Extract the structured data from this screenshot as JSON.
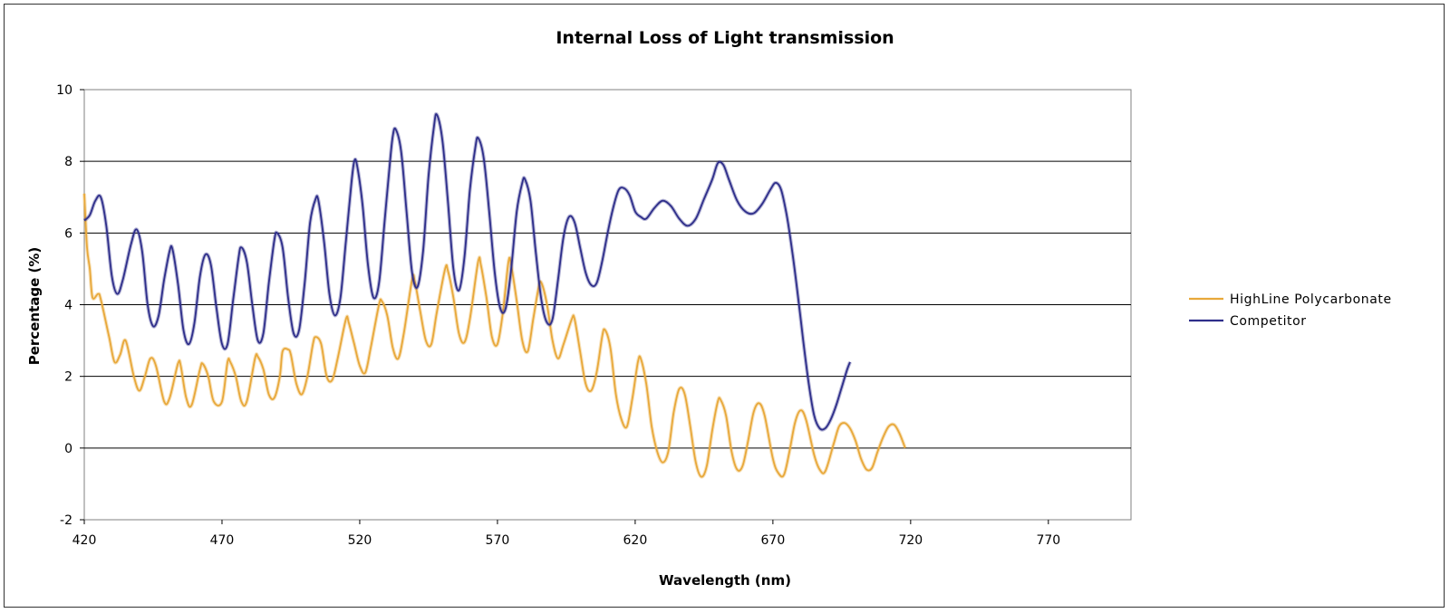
{
  "chart_data": {
    "type": "line",
    "title": "Internal Loss of Light transmission",
    "xlabel": "Wavelength (nm)",
    "ylabel": "Percentage (%)",
    "xlim": [
      420,
      800
    ],
    "ylim": [
      -2,
      10
    ],
    "x_ticks": [
      420,
      470,
      520,
      570,
      620,
      670,
      720,
      770
    ],
    "y_ticks": [
      -2,
      0,
      2,
      4,
      6,
      8,
      10
    ],
    "x_tick_labels": [
      "420",
      "470",
      "520",
      "570",
      "620",
      "670",
      "720",
      "770"
    ],
    "y_tick_labels": [
      "-2",
      "0",
      "2",
      "4",
      "6",
      "8",
      "10"
    ],
    "grid": "horizontal",
    "legend": "right",
    "series": [
      {
        "name": "HighLine Polycarbonate",
        "color": "#E8A83A",
        "points": [
          [
            420,
            7.1
          ],
          [
            421,
            5.6
          ],
          [
            422,
            5.0
          ],
          [
            423,
            4.2
          ],
          [
            425,
            4.3
          ],
          [
            426,
            4.15
          ],
          [
            429,
            3.1
          ],
          [
            431,
            2.4
          ],
          [
            433,
            2.6
          ],
          [
            435,
            3.0
          ],
          [
            438,
            2.0
          ],
          [
            440,
            1.6
          ],
          [
            442,
            2.0
          ],
          [
            444,
            2.5
          ],
          [
            446,
            2.3
          ],
          [
            449,
            1.3
          ],
          [
            451,
            1.4
          ],
          [
            454,
            2.35
          ],
          [
            455,
            2.3
          ],
          [
            457,
            1.4
          ],
          [
            459,
            1.2
          ],
          [
            462,
            2.2
          ],
          [
            463,
            2.35
          ],
          [
            465,
            2.0
          ],
          [
            467,
            1.3
          ],
          [
            470,
            1.3
          ],
          [
            472,
            2.4
          ],
          [
            473,
            2.4
          ],
          [
            475,
            2.0
          ],
          [
            477,
            1.3
          ],
          [
            479,
            1.3
          ],
          [
            482,
            2.5
          ],
          [
            483,
            2.55
          ],
          [
            485,
            2.2
          ],
          [
            487,
            1.5
          ],
          [
            489,
            1.4
          ],
          [
            491,
            2.0
          ],
          [
            492,
            2.7
          ],
          [
            494,
            2.75
          ],
          [
            495,
            2.6
          ],
          [
            497,
            1.8
          ],
          [
            499,
            1.5
          ],
          [
            501,
            2.0
          ],
          [
            503,
            2.9
          ],
          [
            504,
            3.1
          ],
          [
            506,
            2.9
          ],
          [
            508,
            2.0
          ],
          [
            510,
            1.9
          ],
          [
            512,
            2.5
          ],
          [
            515,
            3.6
          ],
          [
            516,
            3.5
          ],
          [
            518,
            2.9
          ],
          [
            520,
            2.3
          ],
          [
            522,
            2.1
          ],
          [
            524,
            2.8
          ],
          [
            527,
            4.0
          ],
          [
            528,
            4.1
          ],
          [
            530,
            3.7
          ],
          [
            532,
            2.8
          ],
          [
            534,
            2.5
          ],
          [
            536,
            3.2
          ],
          [
            539,
            4.7
          ],
          [
            540,
            4.65
          ],
          [
            542,
            3.8
          ],
          [
            544,
            3.0
          ],
          [
            546,
            2.9
          ],
          [
            548,
            3.8
          ],
          [
            551,
            5.0
          ],
          [
            552,
            4.95
          ],
          [
            554,
            4.2
          ],
          [
            556,
            3.2
          ],
          [
            558,
            2.95
          ],
          [
            560,
            3.6
          ],
          [
            563,
            5.2
          ],
          [
            564,
            5.1
          ],
          [
            566,
            4.2
          ],
          [
            568,
            3.1
          ],
          [
            570,
            2.9
          ],
          [
            572,
            3.8
          ],
          [
            574,
            5.2
          ],
          [
            575,
            5.1
          ],
          [
            577,
            4.1
          ],
          [
            579,
            3.0
          ],
          [
            581,
            2.7
          ],
          [
            583,
            3.6
          ],
          [
            585,
            4.5
          ],
          [
            586,
            4.6
          ],
          [
            588,
            4.0
          ],
          [
            590,
            3.0
          ],
          [
            592,
            2.5
          ],
          [
            594,
            2.9
          ],
          [
            597,
            3.6
          ],
          [
            598,
            3.6
          ],
          [
            600,
            2.7
          ],
          [
            602,
            1.8
          ],
          [
            604,
            1.6
          ],
          [
            606,
            2.1
          ],
          [
            608,
            3.1
          ],
          [
            609,
            3.3
          ],
          [
            611,
            2.8
          ],
          [
            613,
            1.5
          ],
          [
            615,
            0.8
          ],
          [
            617,
            0.6
          ],
          [
            619,
            1.4
          ],
          [
            621,
            2.4
          ],
          [
            622,
            2.5
          ],
          [
            624,
            1.8
          ],
          [
            626,
            0.6
          ],
          [
            628,
            -0.1
          ],
          [
            630,
            -0.4
          ],
          [
            632,
            -0.1
          ],
          [
            634,
            1.0
          ],
          [
            636,
            1.65
          ],
          [
            638,
            1.5
          ],
          [
            640,
            0.6
          ],
          [
            642,
            -0.4
          ],
          [
            644,
            -0.8
          ],
          [
            646,
            -0.5
          ],
          [
            648,
            0.5
          ],
          [
            650,
            1.3
          ],
          [
            651,
            1.35
          ],
          [
            653,
            0.9
          ],
          [
            655,
            -0.1
          ],
          [
            657,
            -0.6
          ],
          [
            659,
            -0.5
          ],
          [
            661,
            0.2
          ],
          [
            663,
            1.0
          ],
          [
            665,
            1.25
          ],
          [
            667,
            0.9
          ],
          [
            670,
            -0.3
          ],
          [
            672,
            -0.7
          ],
          [
            674,
            -0.75
          ],
          [
            676,
            -0.1
          ],
          [
            678,
            0.7
          ],
          [
            680,
            1.05
          ],
          [
            682,
            0.8
          ],
          [
            685,
            -0.2
          ],
          [
            687,
            -0.6
          ],
          [
            689,
            -0.65
          ],
          [
            692,
            0.1
          ],
          [
            694,
            0.6
          ],
          [
            696,
            0.7
          ],
          [
            698,
            0.55
          ],
          [
            700,
            0.2
          ],
          [
            702,
            -0.3
          ],
          [
            704,
            -0.6
          ],
          [
            706,
            -0.55
          ],
          [
            708,
            -0.1
          ],
          [
            710,
            0.3
          ],
          [
            712,
            0.6
          ],
          [
            714,
            0.65
          ],
          [
            716,
            0.4
          ],
          [
            718,
            0.0
          ]
        ]
      },
      {
        "name": "Competitor",
        "color": "#2E2E8A",
        "points": [
          [
            420,
            6.35
          ],
          [
            422,
            6.5
          ],
          [
            424,
            6.9
          ],
          [
            426,
            7.0
          ],
          [
            428,
            6.2
          ],
          [
            430,
            4.8
          ],
          [
            432,
            4.3
          ],
          [
            434,
            4.7
          ],
          [
            437,
            5.7
          ],
          [
            439,
            6.1
          ],
          [
            441,
            5.5
          ],
          [
            443,
            4.0
          ],
          [
            445,
            3.4
          ],
          [
            447,
            3.7
          ],
          [
            449,
            4.7
          ],
          [
            451,
            5.5
          ],
          [
            452,
            5.55
          ],
          [
            454,
            4.6
          ],
          [
            456,
            3.3
          ],
          [
            458,
            2.9
          ],
          [
            460,
            3.5
          ],
          [
            462,
            4.8
          ],
          [
            464,
            5.4
          ],
          [
            466,
            5.1
          ],
          [
            468,
            3.9
          ],
          [
            470,
            2.9
          ],
          [
            472,
            2.9
          ],
          [
            474,
            4.1
          ],
          [
            476,
            5.3
          ],
          [
            477,
            5.6
          ],
          [
            479,
            5.2
          ],
          [
            481,
            4.0
          ],
          [
            483,
            3.0
          ],
          [
            485,
            3.2
          ],
          [
            487,
            4.6
          ],
          [
            489,
            5.8
          ],
          [
            490,
            6.0
          ],
          [
            492,
            5.6
          ],
          [
            494,
            4.2
          ],
          [
            496,
            3.2
          ],
          [
            498,
            3.3
          ],
          [
            500,
            4.6
          ],
          [
            502,
            6.3
          ],
          [
            504,
            6.95
          ],
          [
            505,
            6.9
          ],
          [
            507,
            5.8
          ],
          [
            509,
            4.3
          ],
          [
            511,
            3.7
          ],
          [
            513,
            4.2
          ],
          [
            515,
            5.8
          ],
          [
            517,
            7.4
          ],
          [
            518,
            8.0
          ],
          [
            519,
            7.9
          ],
          [
            521,
            6.8
          ],
          [
            523,
            5.1
          ],
          [
            525,
            4.2
          ],
          [
            527,
            4.6
          ],
          [
            529,
            6.3
          ],
          [
            531,
            8.0
          ],
          [
            532,
            8.7
          ],
          [
            533,
            8.9
          ],
          [
            535,
            8.3
          ],
          [
            537,
            6.6
          ],
          [
            539,
            4.9
          ],
          [
            541,
            4.5
          ],
          [
            543,
            5.5
          ],
          [
            545,
            7.6
          ],
          [
            547,
            9.0
          ],
          [
            548,
            9.3
          ],
          [
            550,
            8.6
          ],
          [
            552,
            6.9
          ],
          [
            554,
            5.0
          ],
          [
            556,
            4.4
          ],
          [
            558,
            5.3
          ],
          [
            560,
            7.2
          ],
          [
            562,
            8.4
          ],
          [
            563,
            8.65
          ],
          [
            565,
            8.1
          ],
          [
            567,
            6.6
          ],
          [
            569,
            4.9
          ],
          [
            571,
            3.9
          ],
          [
            573,
            3.9
          ],
          [
            575,
            5.0
          ],
          [
            577,
            6.6
          ],
          [
            579,
            7.4
          ],
          [
            580,
            7.5
          ],
          [
            582,
            6.9
          ],
          [
            584,
            5.4
          ],
          [
            586,
            4.1
          ],
          [
            588,
            3.5
          ],
          [
            590,
            3.6
          ],
          [
            592,
            4.7
          ],
          [
            594,
            5.9
          ],
          [
            596,
            6.45
          ],
          [
            598,
            6.3
          ],
          [
            600,
            5.6
          ],
          [
            602,
            4.9
          ],
          [
            604,
            4.55
          ],
          [
            606,
            4.6
          ],
          [
            608,
            5.2
          ],
          [
            610,
            6.0
          ],
          [
            612,
            6.7
          ],
          [
            614,
            7.2
          ],
          [
            616,
            7.25
          ],
          [
            618,
            7.05
          ],
          [
            620,
            6.6
          ],
          [
            622,
            6.45
          ],
          [
            624,
            6.4
          ],
          [
            627,
            6.7
          ],
          [
            630,
            6.9
          ],
          [
            633,
            6.75
          ],
          [
            636,
            6.4
          ],
          [
            639,
            6.2
          ],
          [
            642,
            6.4
          ],
          [
            645,
            6.95
          ],
          [
            648,
            7.5
          ],
          [
            650,
            7.95
          ],
          [
            652,
            7.9
          ],
          [
            654,
            7.5
          ],
          [
            657,
            6.9
          ],
          [
            660,
            6.6
          ],
          [
            663,
            6.55
          ],
          [
            666,
            6.8
          ],
          [
            669,
            7.2
          ],
          [
            671,
            7.4
          ],
          [
            673,
            7.2
          ],
          [
            675,
            6.5
          ],
          [
            677,
            5.5
          ],
          [
            679,
            4.3
          ],
          [
            681,
            3.0
          ],
          [
            683,
            1.8
          ],
          [
            685,
            0.9
          ],
          [
            687,
            0.55
          ],
          [
            689,
            0.55
          ],
          [
            691,
            0.8
          ],
          [
            693,
            1.2
          ],
          [
            695,
            1.7
          ],
          [
            697,
            2.2
          ],
          [
            698,
            2.4
          ]
        ]
      }
    ]
  }
}
